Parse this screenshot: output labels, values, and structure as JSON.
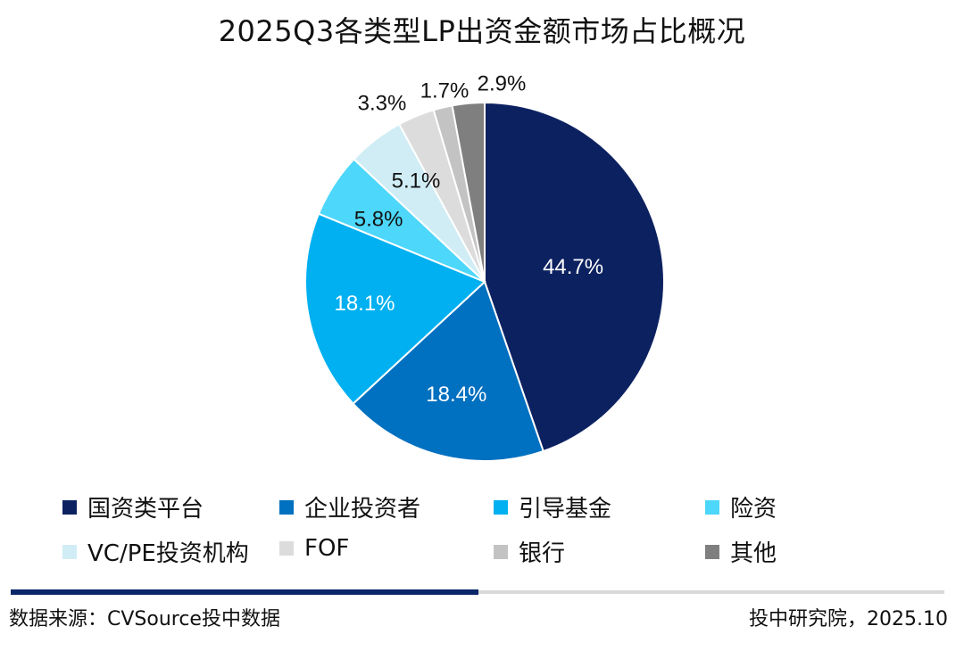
{
  "title": "2025Q3各类型LP出资金额市场占比概况",
  "chart_data": {
    "type": "pie",
    "title": "2025Q3各类型LP出资金额市场占比概况",
    "legend_position": "bottom",
    "series": [
      {
        "name": "国资类平台",
        "value": 44.7,
        "label": "44.7%",
        "color": "#0c2160"
      },
      {
        "name": "企业投资者",
        "value": 18.4,
        "label": "18.4%",
        "color": "#0070c0"
      },
      {
        "name": "引导基金",
        "value": 18.1,
        "label": "18.1%",
        "color": "#00b0f0"
      },
      {
        "name": "险资",
        "value": 5.8,
        "label": "5.8%",
        "color": "#4dd7fa"
      },
      {
        "name": "VC/PE投资机构",
        "value": 5.1,
        "label": "5.1%",
        "color": "#d0edf5"
      },
      {
        "name": "FOF",
        "value": 3.3,
        "label": "3.3%",
        "color": "#dcdcdc"
      },
      {
        "name": "银行",
        "value": 1.7,
        "label": "1.7%",
        "color": "#c3c3c3"
      },
      {
        "name": "其他",
        "value": 2.9,
        "label": "2.9%",
        "color": "#7f7f7f"
      }
    ]
  },
  "footer": {
    "source": "数据来源：CVSource投中数据",
    "credit": "投中研究院，2025.10"
  }
}
